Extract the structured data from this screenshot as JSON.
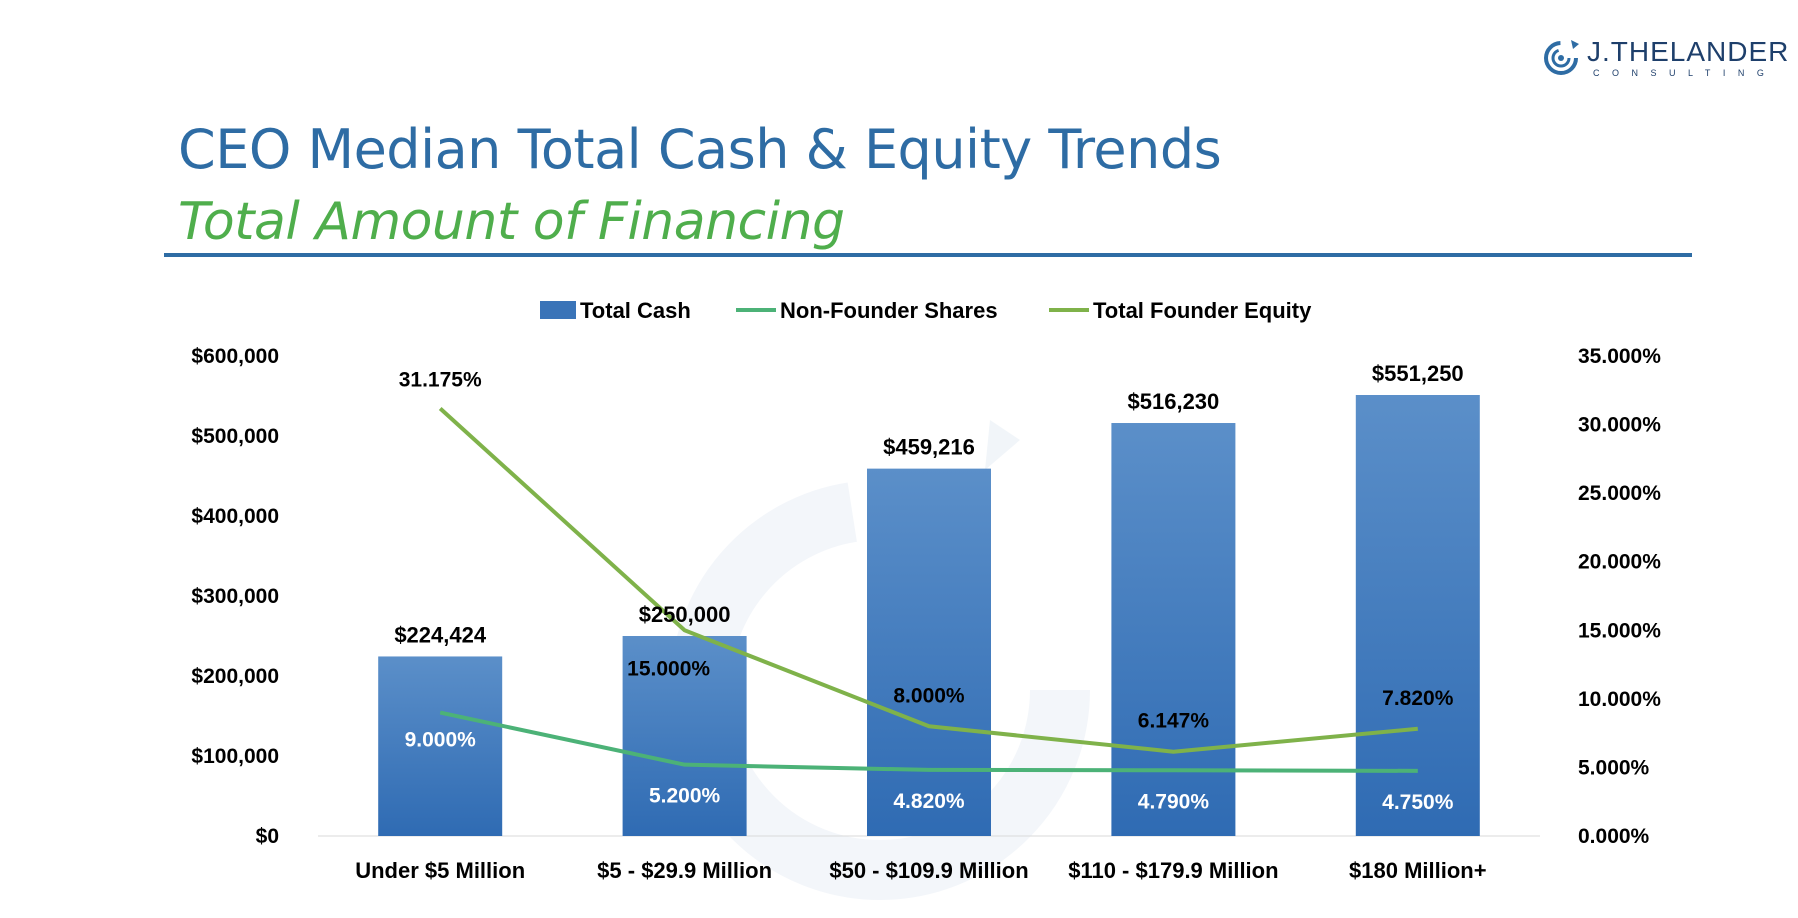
{
  "header": {
    "logo_name": "J.THELANDER",
    "logo_sub": "CONSULTING",
    "logo_icon": "swirl-logo-icon",
    "title": "CEO Median Total Cash & Equity Trends",
    "subtitle": "Total Amount of Financing"
  },
  "colors": {
    "title": "#2e6ca4",
    "subtitle": "#4fae4c",
    "bar": "#3a74b8",
    "non_founder_line": "#4cb277",
    "founder_line": "#7fb24a"
  },
  "chart_data": {
    "type": "bar",
    "categories": [
      "Under $5 Million",
      "$5 - $29.9 Million",
      "$50 - $109.9 Million",
      "$110 - $179.9 Million",
      "$180 Million+"
    ],
    "series": [
      {
        "name": "Total Cash",
        "type": "bar",
        "axis": "left",
        "values": [
          224424,
          250000,
          459216,
          516230,
          551250
        ],
        "labels": [
          "$224,424",
          "$250,000",
          "$459,216",
          "$516,230",
          "$551,250"
        ]
      },
      {
        "name": "Non-Founder Shares",
        "type": "line",
        "axis": "right",
        "values": [
          9.0,
          5.2,
          4.82,
          4.79,
          4.75
        ],
        "labels": [
          "9.000%",
          "5.200%",
          "4.820%",
          "4.790%",
          "4.750%"
        ]
      },
      {
        "name": "Total Founder Equity",
        "type": "line",
        "axis": "right",
        "values": [
          31.175,
          15.0,
          8.0,
          6.147,
          7.82
        ],
        "labels": [
          "31.175%",
          "15.000%",
          "8.000%",
          "6.147%",
          "7.820%"
        ]
      }
    ],
    "y_left": {
      "ylim": [
        0,
        600000
      ],
      "ticks": [
        "$0",
        "$100,000",
        "$200,000",
        "$300,000",
        "$400,000",
        "$500,000",
        "$600,000"
      ]
    },
    "y_right": {
      "ylim": [
        0,
        35
      ],
      "ticks": [
        "0.000%",
        "5.000%",
        "10.000%",
        "15.000%",
        "20.000%",
        "25.000%",
        "30.000%",
        "35.000%"
      ]
    },
    "legend_position": "top-center",
    "grid": false
  }
}
